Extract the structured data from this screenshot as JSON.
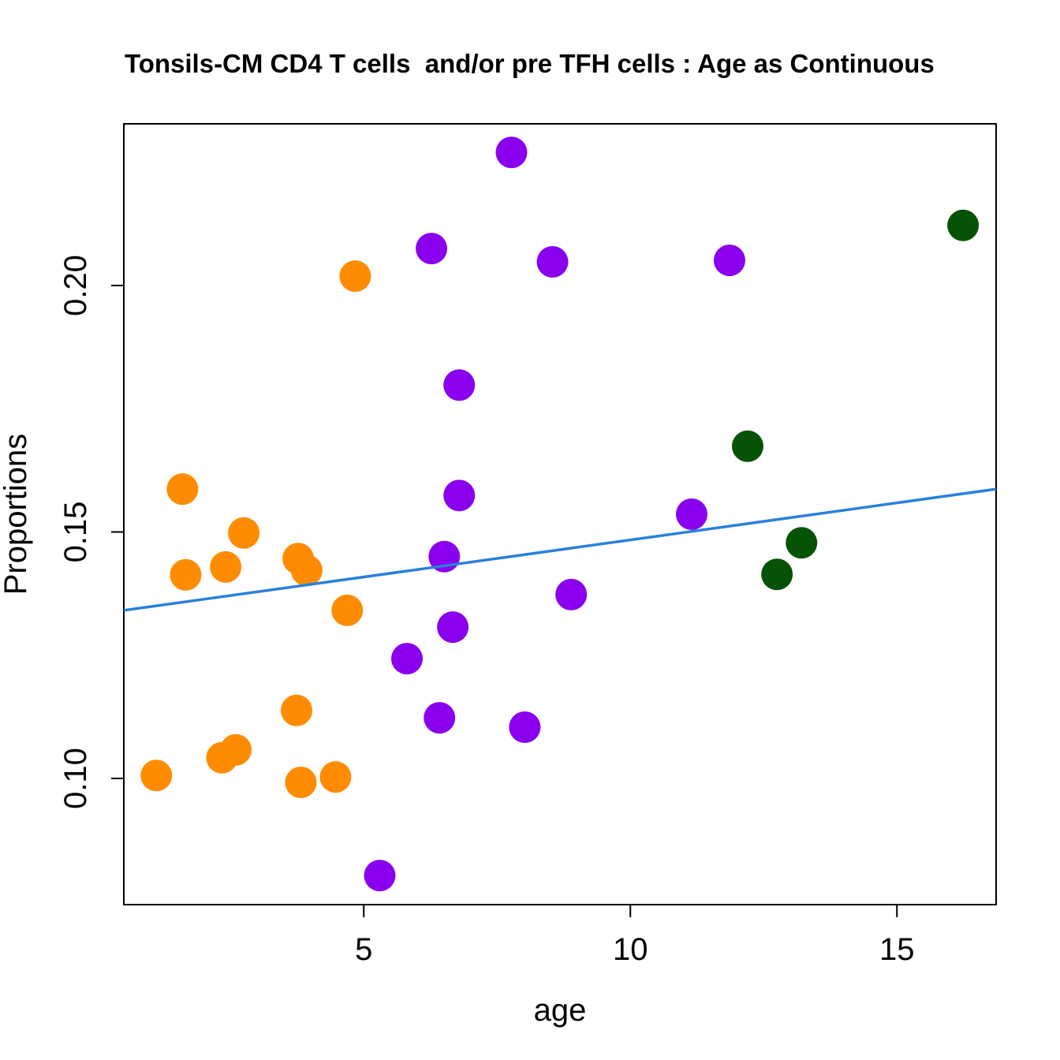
{
  "chart_data": {
    "type": "scatter",
    "title": "Tonsils-CM CD4 T cells  and/or pre TFH cells : Age as Continuous",
    "x_label": "age",
    "y_label": "Proportions",
    "xlim": [
      0.5,
      16.86
    ],
    "ylim": [
      0.0744,
      0.2328
    ],
    "xticks": [
      5,
      10,
      15
    ],
    "yticks": [
      {
        "value": 0.1,
        "label": "0.10"
      },
      {
        "value": 0.15,
        "label": "0.15"
      },
      {
        "value": 0.2,
        "label": "0.20"
      }
    ],
    "series": [
      {
        "color": "#ff8c00",
        "x": [
          1.6,
          1.66,
          2.75,
          2.41,
          1.11,
          2.34,
          2.6,
          3.77,
          3.93,
          3.74,
          3.82,
          4.47,
          4.69,
          4.84
        ],
        "y": [
          0.1587,
          0.1413,
          0.1498,
          0.1429,
          0.1006,
          0.1042,
          0.1058,
          0.1446,
          0.1422,
          0.1138,
          0.0992,
          0.1003,
          0.1341,
          0.2019
        ]
      },
      {
        "color": "#8a00ee",
        "x": [
          7.77,
          6.27,
          8.54,
          11.86,
          6.79,
          6.79,
          6.51,
          11.15,
          8.89,
          6.67,
          5.81,
          6.42,
          8.02,
          5.3
        ],
        "y": [
          0.227,
          0.2075,
          0.2048,
          0.2051,
          0.1798,
          0.1574,
          0.145,
          0.1536,
          0.1373,
          0.1307,
          0.1243,
          0.1123,
          0.1104,
          0.0803
        ]
      },
      {
        "color": "#065306",
        "x": [
          16.24,
          12.2,
          13.21,
          12.75
        ],
        "y": [
          0.2122,
          0.1674,
          0.1478,
          0.1414
        ]
      }
    ],
    "fit": {
      "color": "#2a80dc",
      "x": [
        0.5,
        16.86
      ],
      "y": [
        0.1341,
        0.1587
      ]
    }
  }
}
